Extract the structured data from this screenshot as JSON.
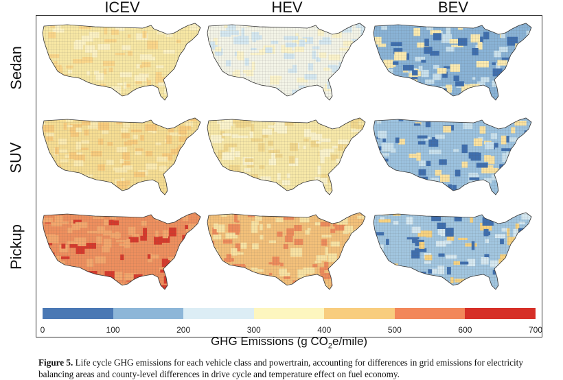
{
  "figure": {
    "columns": [
      "ICEV",
      "HEV",
      "BEV"
    ],
    "rows": [
      "Sedan",
      "SUV",
      "Pickup"
    ],
    "legend": {
      "title_prefix": "GHG Emissions (g CO",
      "title_sub": "2",
      "title_suffix": "e/mile)",
      "ticks": [
        "0",
        "100",
        "200",
        "300",
        "400",
        "500",
        "600",
        "700"
      ],
      "colors": [
        "#4a78b4",
        "#8db6d8",
        "#dcedf5",
        "#fdf6bf",
        "#f8cd7e",
        "#f2875a",
        "#d62f27"
      ]
    },
    "panels": [
      {
        "row": "Sedan",
        "col": "ICEV",
        "base_color": "#f7e7a4",
        "accent_colors": [
          "#fbd68a",
          "#fcf2c4"
        ]
      },
      {
        "row": "Sedan",
        "col": "HEV",
        "base_color": "#f3f4e7",
        "accent_colors": [
          "#d5e8f1",
          "#fcf4cb"
        ]
      },
      {
        "row": "Sedan",
        "col": "BEV",
        "base_color": "#8ab3d6",
        "accent_colors": [
          "#3f6fae",
          "#fbeab0",
          "#c9e1ee"
        ]
      },
      {
        "row": "SUV",
        "col": "ICEV",
        "base_color": "#f6dd93",
        "accent_colors": [
          "#f8cb7d",
          "#fbeab0"
        ]
      },
      {
        "row": "SUV",
        "col": "HEV",
        "base_color": "#f7e8a8",
        "accent_colors": [
          "#fbf3cc",
          "#f2d88e"
        ]
      },
      {
        "row": "SUV",
        "col": "BEV",
        "base_color": "#9cc2df",
        "accent_colors": [
          "#3f6fae",
          "#fbe2a0",
          "#c9e1ee"
        ]
      },
      {
        "row": "Pickup",
        "col": "ICEV",
        "base_color": "#ee8f5e",
        "accent_colors": [
          "#d63a2c",
          "#f4a76d"
        ]
      },
      {
        "row": "Pickup",
        "col": "HEV",
        "base_color": "#f3c07a",
        "accent_colors": [
          "#ee8b5b",
          "#f9e3a3"
        ]
      },
      {
        "row": "Pickup",
        "col": "BEV",
        "base_color": "#a2c6e0",
        "accent_colors": [
          "#3f6fae",
          "#f8d27f",
          "#d6e9f2"
        ]
      }
    ],
    "caption_bold": "Figure 5.",
    "caption_text": "Life cycle GHG emissions for each vehicle class and powertrain, accounting for differences in grid emissions for electricity balancing areas and county-level differences in drive cycle and temperature effect on fuel economy."
  }
}
